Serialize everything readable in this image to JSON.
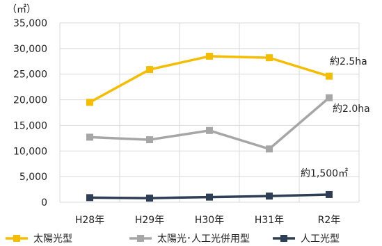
{
  "chart_data": {
    "type": "line",
    "unit_label": "（㎡）",
    "categories": [
      "H28年",
      "H29年",
      "H30年",
      "H31年",
      "R2年"
    ],
    "ylim": [
      0,
      35000
    ],
    "yticks": [
      "0",
      "5,000",
      "10,000",
      "15,000",
      "20,000",
      "25,000",
      "30,000",
      "35,000"
    ],
    "ytick_values": [
      0,
      5000,
      10000,
      15000,
      20000,
      25000,
      30000,
      35000
    ],
    "grid": true,
    "legend_position": "bottom",
    "series": [
      {
        "name": "太陽光型",
        "color": "#f5bd00",
        "marker": "square",
        "values": [
          19500,
          25900,
          28500,
          28200,
          24600
        ]
      },
      {
        "name": "太陽光･人工光併用型",
        "color": "#a6a6a6",
        "marker": "square",
        "values": [
          12700,
          12200,
          14000,
          10400,
          20400
        ]
      },
      {
        "name": "人工光型",
        "color": "#2e3f55",
        "marker": "square",
        "values": [
          900,
          800,
          1000,
          1200,
          1500
        ]
      }
    ],
    "annotations": [
      "約2.5ha",
      "約2.0ha",
      "約1,500㎡"
    ]
  }
}
